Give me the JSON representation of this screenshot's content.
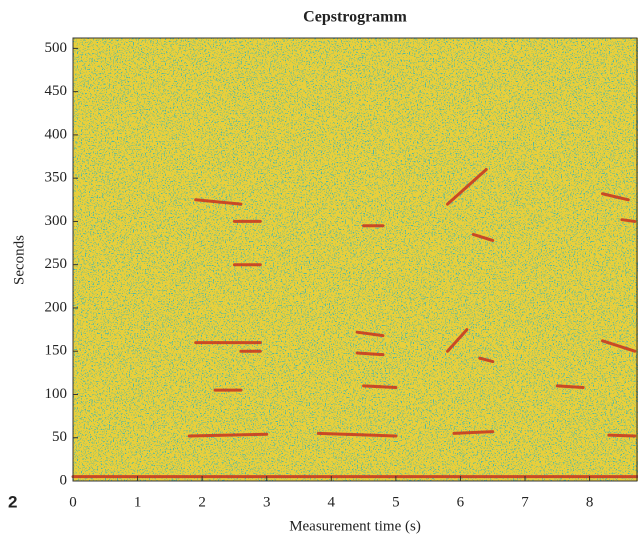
{
  "figure_label": "2",
  "chart_data": {
    "type": "heatmap",
    "title": "Cepstrogramm",
    "xlabel": "Measurement time (s)",
    "ylabel": "Seconds",
    "xlim": [
      0,
      8.75
    ],
    "ylim": [
      0,
      512
    ],
    "xticks": [
      0,
      1,
      2,
      3,
      4,
      5,
      6,
      7,
      8
    ],
    "yticks": [
      0,
      50,
      100,
      150,
      200,
      250,
      300,
      350,
      400,
      450,
      500
    ],
    "colormap": [
      "#e8cf3c",
      "#4fb8a6",
      "#e08a2a"
    ],
    "trace_color": "#c8321e",
    "traces": [
      {
        "x": [
          1.9,
          2.6
        ],
        "values": [
          325,
          320
        ]
      },
      {
        "x": [
          2.5,
          2.9
        ],
        "values": [
          300,
          300
        ]
      },
      {
        "x": [
          2.5,
          2.9
        ],
        "values": [
          250,
          250
        ]
      },
      {
        "x": [
          1.9,
          2.9
        ],
        "values": [
          160,
          160
        ]
      },
      {
        "x": [
          2.6,
          2.9
        ],
        "values": [
          150,
          150
        ]
      },
      {
        "x": [
          2.2,
          2.6
        ],
        "values": [
          105,
          105
        ]
      },
      {
        "x": [
          1.8,
          3.0
        ],
        "values": [
          52,
          54
        ]
      },
      {
        "x": [
          4.5,
          4.8
        ],
        "values": [
          295,
          295
        ]
      },
      {
        "x": [
          4.4,
          4.8
        ],
        "values": [
          172,
          168
        ]
      },
      {
        "x": [
          4.4,
          4.8
        ],
        "values": [
          148,
          146
        ]
      },
      {
        "x": [
          4.5,
          5.0
        ],
        "values": [
          110,
          108
        ]
      },
      {
        "x": [
          3.8,
          5.0
        ],
        "values": [
          55,
          52
        ]
      },
      {
        "x": [
          5.8,
          6.4
        ],
        "values": [
          320,
          360
        ]
      },
      {
        "x": [
          6.2,
          6.5
        ],
        "values": [
          285,
          278
        ]
      },
      {
        "x": [
          5.8,
          6.1
        ],
        "values": [
          150,
          175
        ]
      },
      {
        "x": [
          6.3,
          6.5
        ],
        "values": [
          142,
          138
        ]
      },
      {
        "x": [
          5.9,
          6.5
        ],
        "values": [
          55,
          57
        ]
      },
      {
        "x": [
          7.5,
          7.9
        ],
        "values": [
          110,
          108
        ]
      },
      {
        "x": [
          8.2,
          8.6
        ],
        "values": [
          332,
          325
        ]
      },
      {
        "x": [
          8.5,
          8.7
        ],
        "values": [
          302,
          300
        ]
      },
      {
        "x": [
          8.2,
          8.7
        ],
        "values": [
          162,
          150
        ]
      },
      {
        "x": [
          8.3,
          8.7
        ],
        "values": [
          53,
          52
        ]
      },
      {
        "x": [
          0,
          8.75
        ],
        "values": [
          5,
          5
        ]
      }
    ]
  }
}
